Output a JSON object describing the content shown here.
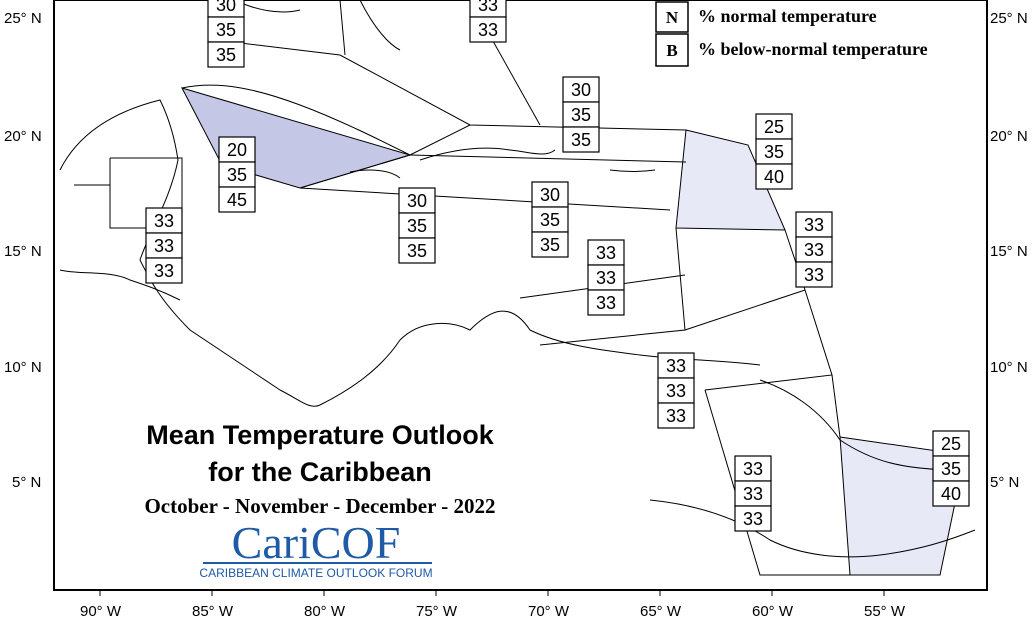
{
  "title_line1": "Mean Temperature Outlook",
  "title_line2": "for the Caribbean",
  "period": "October - November - December - 2022",
  "logo": {
    "name": "CariCOF",
    "subtitle": "CARIBBEAN CLIMATE OUTLOOK FORUM",
    "color": "#1f5aa6"
  },
  "legend": [
    {
      "key": "N",
      "text": "% normal temperature"
    },
    {
      "key": "B",
      "text": "% below-normal temperature"
    }
  ],
  "axes": {
    "lat_labels": [
      "25° N",
      "20° N",
      "15° N",
      "10° N",
      "5° N"
    ],
    "lon_labels": [
      "90° W",
      "85° W",
      "80° W",
      "75° W",
      "70° W",
      "65° W",
      "60° W",
      "55° W"
    ]
  },
  "shading": {
    "below_strong": "#c4c7e6",
    "below_light": "#e7e9f6"
  },
  "forecast_boxes": [
    {
      "id": "bahamas-west",
      "values": [
        "30",
        "35",
        "35"
      ]
    },
    {
      "id": "bahamas-east",
      "values": [
        "33",
        "33"
      ]
    },
    {
      "id": "cuba",
      "values": [
        "20",
        "35",
        "45"
      ]
    },
    {
      "id": "belize-honduras",
      "values": [
        "33",
        "33",
        "33"
      ]
    },
    {
      "id": "jamaica-sea",
      "values": [
        "30",
        "35",
        "35"
      ]
    },
    {
      "id": "hispaniola",
      "values": [
        "30",
        "35",
        "35"
      ]
    },
    {
      "id": "puerto-rico",
      "values": [
        "30",
        "35",
        "35"
      ]
    },
    {
      "id": "leeward-islands",
      "values": [
        "25",
        "35",
        "40"
      ]
    },
    {
      "id": "windward-islands",
      "values": [
        "33",
        "33",
        "33"
      ]
    },
    {
      "id": "caribbean-sea-south",
      "values": [
        "33",
        "33",
        "33"
      ]
    },
    {
      "id": "venezuela",
      "values": [
        "33",
        "33",
        "33"
      ]
    },
    {
      "id": "guyana",
      "values": [
        "33",
        "33",
        "33"
      ]
    },
    {
      "id": "suriname-guiana",
      "values": [
        "25",
        "35",
        "40"
      ]
    }
  ]
}
